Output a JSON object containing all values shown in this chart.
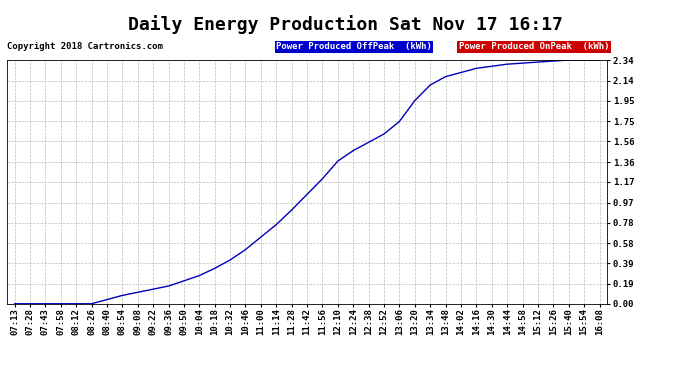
{
  "title": "Daily Energy Production Sat Nov 17 16:17",
  "copyright_text": "Copyright 2018 Cartronics.com",
  "legend_offpeak_label": "Power Produced OffPeak  (kWh)",
  "legend_onpeak_label": "Power Produced OnPeak  (kWh)",
  "legend_offpeak_bg": "#0000cc",
  "legend_onpeak_bg": "#cc0000",
  "line_color": "#0000bb",
  "background_color": "#ffffff",
  "plot_bg_color": "#ffffff",
  "grid_color": "#bbbbbb",
  "yticks": [
    0.0,
    0.19,
    0.39,
    0.58,
    0.78,
    0.97,
    1.17,
    1.36,
    1.56,
    1.75,
    1.95,
    2.14,
    2.34
  ],
  "ymax": 2.34,
  "ymin": 0.0,
  "x_times": [
    "07:13",
    "07:28",
    "07:43",
    "07:58",
    "08:12",
    "08:26",
    "08:40",
    "08:54",
    "09:08",
    "09:22",
    "09:36",
    "09:50",
    "10:04",
    "10:18",
    "10:32",
    "10:46",
    "11:00",
    "11:14",
    "11:28",
    "11:42",
    "11:56",
    "12:10",
    "12:24",
    "12:38",
    "12:52",
    "13:06",
    "13:20",
    "13:34",
    "13:48",
    "14:02",
    "14:16",
    "14:30",
    "14:44",
    "14:58",
    "15:12",
    "15:26",
    "15:40",
    "15:54",
    "16:08"
  ],
  "y_values": [
    0.0,
    0.0,
    0.0,
    0.0,
    0.0,
    0.0,
    0.04,
    0.08,
    0.11,
    0.14,
    0.17,
    0.22,
    0.27,
    0.34,
    0.42,
    0.52,
    0.64,
    0.76,
    0.9,
    1.05,
    1.2,
    1.37,
    1.47,
    1.55,
    1.63,
    1.75,
    1.95,
    2.1,
    2.18,
    2.22,
    2.26,
    2.28,
    2.3,
    2.31,
    2.32,
    2.33,
    2.34,
    2.34,
    2.34
  ],
  "title_fontsize": 13,
  "tick_fontsize": 6.5,
  "copyright_fontsize": 6.5,
  "legend_fontsize": 6.5
}
